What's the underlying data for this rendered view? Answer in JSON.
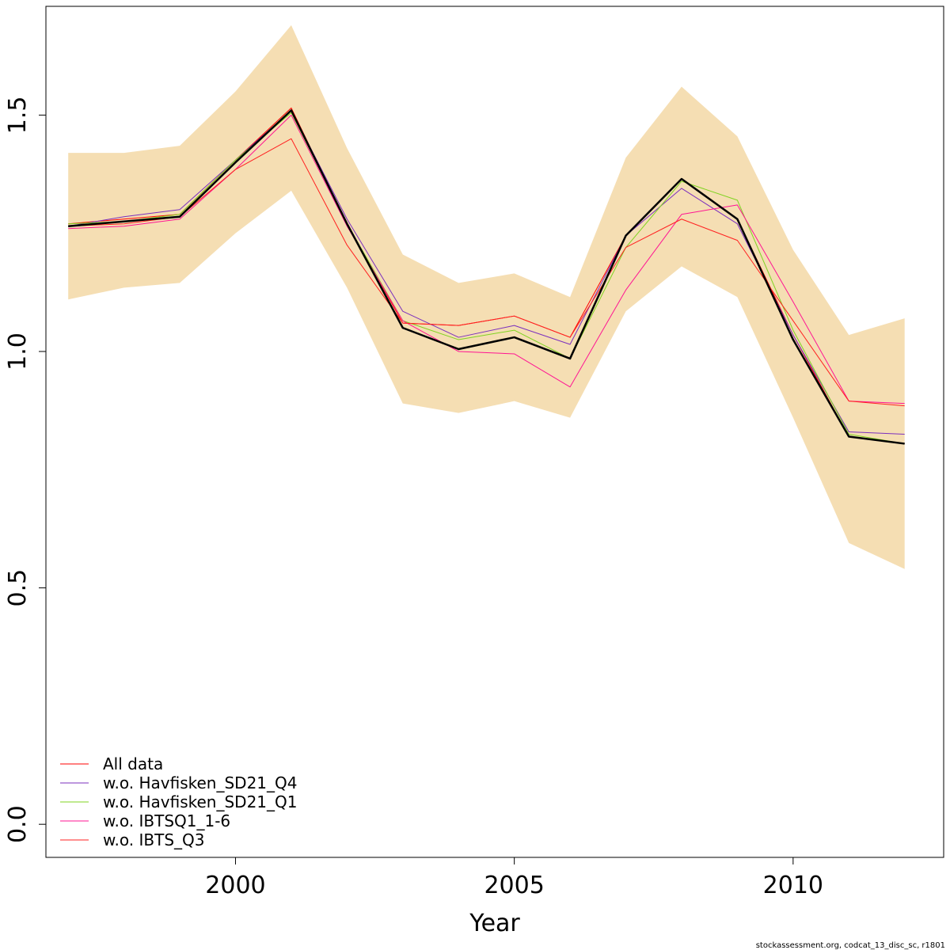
{
  "chart_data": {
    "type": "line",
    "xlabel": "Year",
    "ylabel": "",
    "xlim": [
      1996.6,
      2012.7
    ],
    "ylim": [
      -0.07,
      1.73
    ],
    "xticks": [
      2000,
      2005,
      2010
    ],
    "yticks": [
      0.0,
      0.5,
      1.0,
      1.5
    ],
    "ytick_labels": [
      "0.0",
      "0.5",
      "1.0",
      "1.5"
    ],
    "x": [
      1997,
      1998,
      1999,
      2000,
      2001,
      2002,
      2003,
      2004,
      2005,
      2006,
      2007,
      2008,
      2009,
      2010,
      2011,
      2012
    ],
    "band": {
      "color": "#f5deb3",
      "upper": [
        1.42,
        1.42,
        1.435,
        1.55,
        1.69,
        1.43,
        1.205,
        1.145,
        1.165,
        1.115,
        1.41,
        1.56,
        1.455,
        1.215,
        1.035,
        1.07
      ],
      "lower": [
        1.11,
        1.135,
        1.145,
        1.25,
        1.34,
        1.135,
        0.89,
        0.87,
        0.895,
        0.86,
        1.085,
        1.18,
        1.115,
        0.86,
        0.595,
        0.54
      ]
    },
    "series": [
      {
        "name": "All data",
        "color": "#ff0000",
        "width": 1,
        "values": [
          1.27,
          1.28,
          1.29,
          1.405,
          1.515,
          1.27,
          1.06,
          1.055,
          1.075,
          1.03,
          1.245,
          1.365,
          1.28,
          1.035,
          0.82,
          0.805
        ]
      },
      {
        "name": "w.o. Havfisken_SD21_Q4",
        "color": "#7b2fbe",
        "width": 1,
        "values": [
          1.265,
          1.285,
          1.3,
          1.405,
          1.51,
          1.28,
          1.085,
          1.03,
          1.055,
          1.015,
          1.245,
          1.345,
          1.27,
          1.035,
          0.83,
          0.825
        ]
      },
      {
        "name": "w.o. Havfisken_SD21_Q1",
        "color": "#7fd321",
        "width": 1,
        "values": [
          1.27,
          1.275,
          1.29,
          1.405,
          1.505,
          1.27,
          1.065,
          1.025,
          1.045,
          0.985,
          1.22,
          1.36,
          1.32,
          1.045,
          0.825,
          0.805
        ]
      },
      {
        "name": "w.o. IBTSQ1_1-6",
        "color": "#ff1493",
        "width": 1,
        "values": [
          1.26,
          1.265,
          1.28,
          1.385,
          1.5,
          1.265,
          1.065,
          1.0,
          0.995,
          0.925,
          1.13,
          1.29,
          1.31,
          1.105,
          0.895,
          0.89
        ]
      },
      {
        "name": "w.o. IBTS_Q3",
        "color": "#ff2020",
        "width": 1,
        "values": [
          1.265,
          1.27,
          1.285,
          1.385,
          1.45,
          1.225,
          1.06,
          1.055,
          1.075,
          1.03,
          1.22,
          1.28,
          1.235,
          1.065,
          0.895,
          0.885
        ]
      },
      {
        "color": "#000000",
        "width": 2.5,
        "values": [
          1.265,
          1.275,
          1.285,
          1.4,
          1.51,
          1.27,
          1.05,
          1.005,
          1.03,
          0.985,
          1.245,
          1.365,
          1.28,
          1.025,
          0.82,
          0.805
        ]
      }
    ],
    "legend_position": "bottom-left",
    "grid": false
  },
  "footer": {
    "credit": "stockassessment.org, codcat_13_disc_sc, r1801"
  }
}
